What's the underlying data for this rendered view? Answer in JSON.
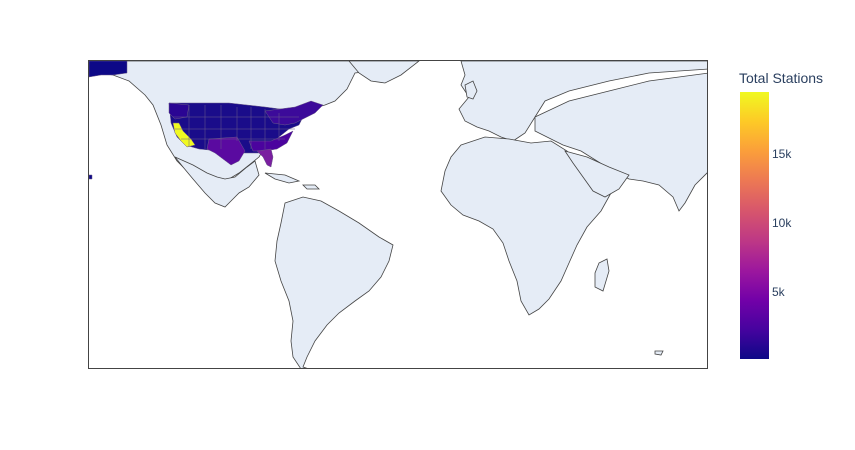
{
  "map": {
    "type": "choropleth",
    "scope": "world",
    "colorscale": [
      "#0d0887",
      "#46039f",
      "#7201a8",
      "#9c179e",
      "#bd3786",
      "#d8576b",
      "#ed7953",
      "#fb9f3a",
      "#fdca26",
      "#f0f921"
    ],
    "land_color": "#e5ecf6",
    "border_color": "#444444"
  },
  "colorbar": {
    "title": "Total Stations",
    "ticks": [
      "15k",
      "10k",
      "5k"
    ],
    "tick_values": [
      15000,
      10000,
      5000
    ],
    "range": [
      0,
      19500
    ]
  },
  "highlighted_regions": [
    {
      "region": "California",
      "level": "highest",
      "color": "#f0f921"
    },
    {
      "region": "Florida",
      "level": "mid-low",
      "color": "#7a1fa0"
    },
    {
      "region": "Texas",
      "level": "low",
      "color": "#5a0aa0"
    },
    {
      "region": "Other US states",
      "level": "lowest",
      "color": "#1a0c8a"
    },
    {
      "region": "Alaska",
      "level": "lowest",
      "color": "#0d0887"
    }
  ]
}
